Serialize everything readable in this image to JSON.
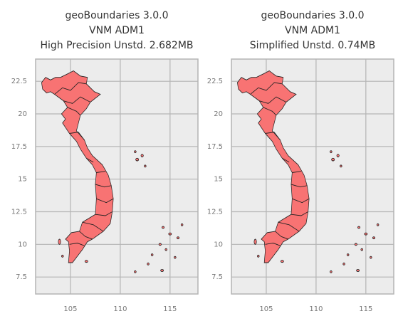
{
  "chart_data": [
    {
      "type": "map",
      "title": [
        "geoBoundaries 3.0.0",
        "VNM ADM1",
        "High Precision Unstd. 2.682MB"
      ],
      "xlim": [
        101.5,
        117.8
      ],
      "ylim": [
        6.2,
        24.2
      ],
      "xticks": [
        105,
        110,
        115
      ],
      "yticks": [
        7.5,
        10.0,
        12.5,
        15.0,
        17.5,
        20.0,
        22.5
      ],
      "grid": true,
      "color": "#f87373"
    },
    {
      "type": "map",
      "title": [
        "geoBoundaries 3.0.0",
        "VNM ADM1",
        "Simplified Unstd. 0.74MB"
      ],
      "xlim": [
        101.5,
        117.8
      ],
      "ylim": [
        6.2,
        24.2
      ],
      "xticks": [
        105,
        110,
        115
      ],
      "yticks": [
        7.5,
        10.0,
        12.5,
        15.0,
        17.5,
        20.0,
        22.5
      ],
      "grid": true,
      "color": "#f87373"
    }
  ]
}
